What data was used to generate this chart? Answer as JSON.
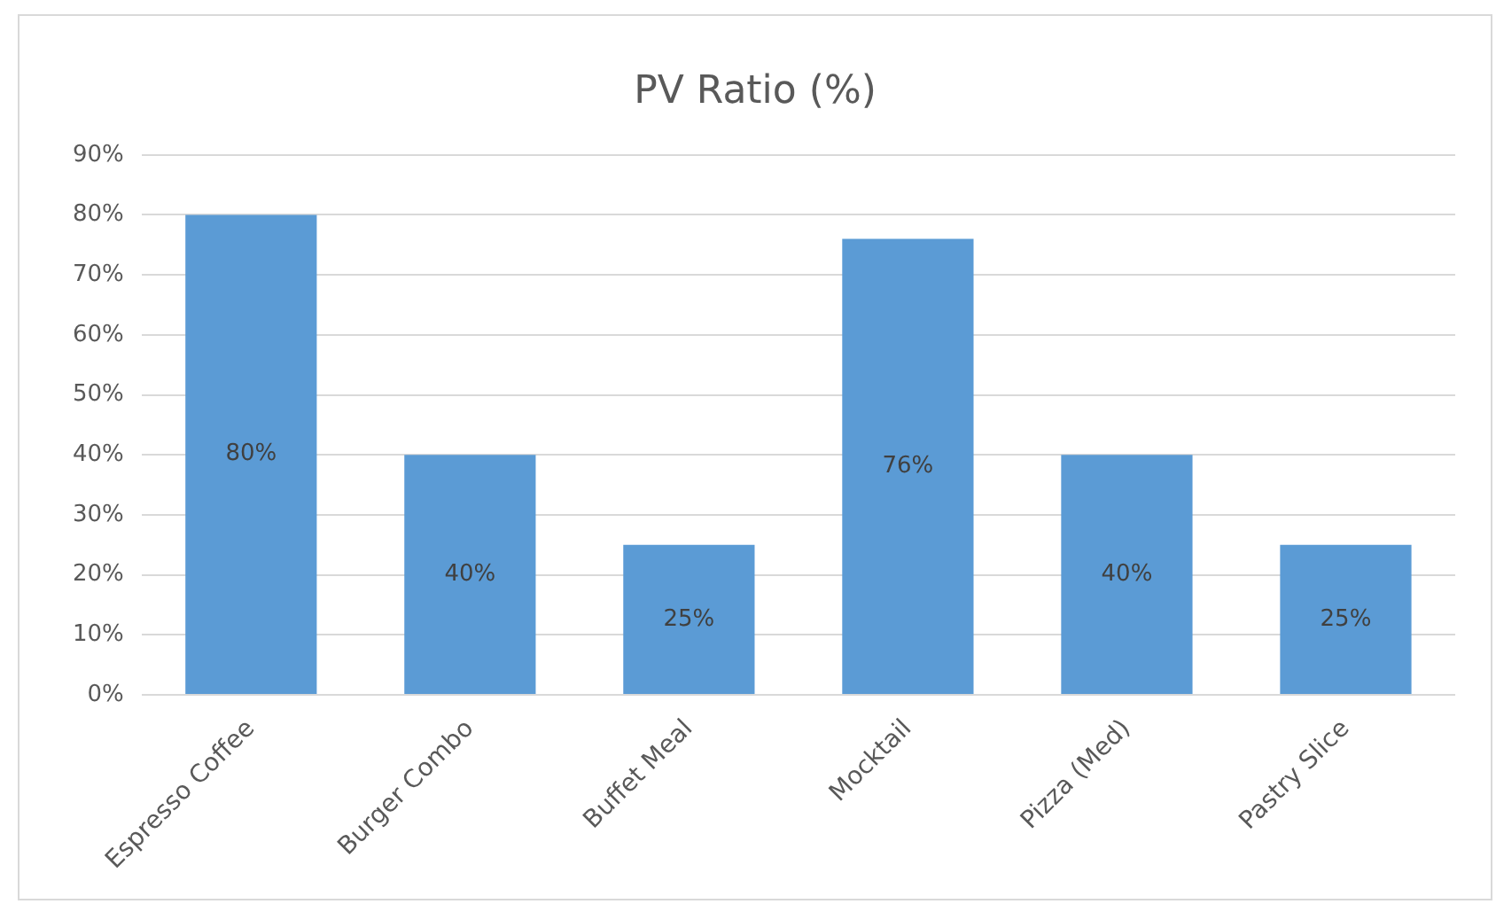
{
  "chart_data": {
    "type": "bar",
    "title": "PV Ratio (%)",
    "categories": [
      "Espresso Coffee",
      "Burger Combo",
      "Buffet Meal",
      "Mocktail",
      "Pizza (Med)",
      "Pastry Slice"
    ],
    "values": [
      80,
      40,
      25,
      76,
      40,
      25
    ],
    "value_labels": [
      "80%",
      "40%",
      "25%",
      "76%",
      "40%",
      "25%"
    ],
    "color": "#5b9bd5",
    "ylim": [
      0,
      90
    ],
    "yticks": [
      {
        "value": 0,
        "label": "0%"
      },
      {
        "value": 10,
        "label": "10%"
      },
      {
        "value": 20,
        "label": "20%"
      },
      {
        "value": 30,
        "label": "30%"
      },
      {
        "value": 40,
        "label": "40%"
      },
      {
        "value": 50,
        "label": "50%"
      },
      {
        "value": 60,
        "label": "60%"
      },
      {
        "value": 70,
        "label": "70%"
      },
      {
        "value": 80,
        "label": "80%"
      },
      {
        "value": 90,
        "label": "90%"
      }
    ],
    "grid": "y",
    "legend": false
  }
}
